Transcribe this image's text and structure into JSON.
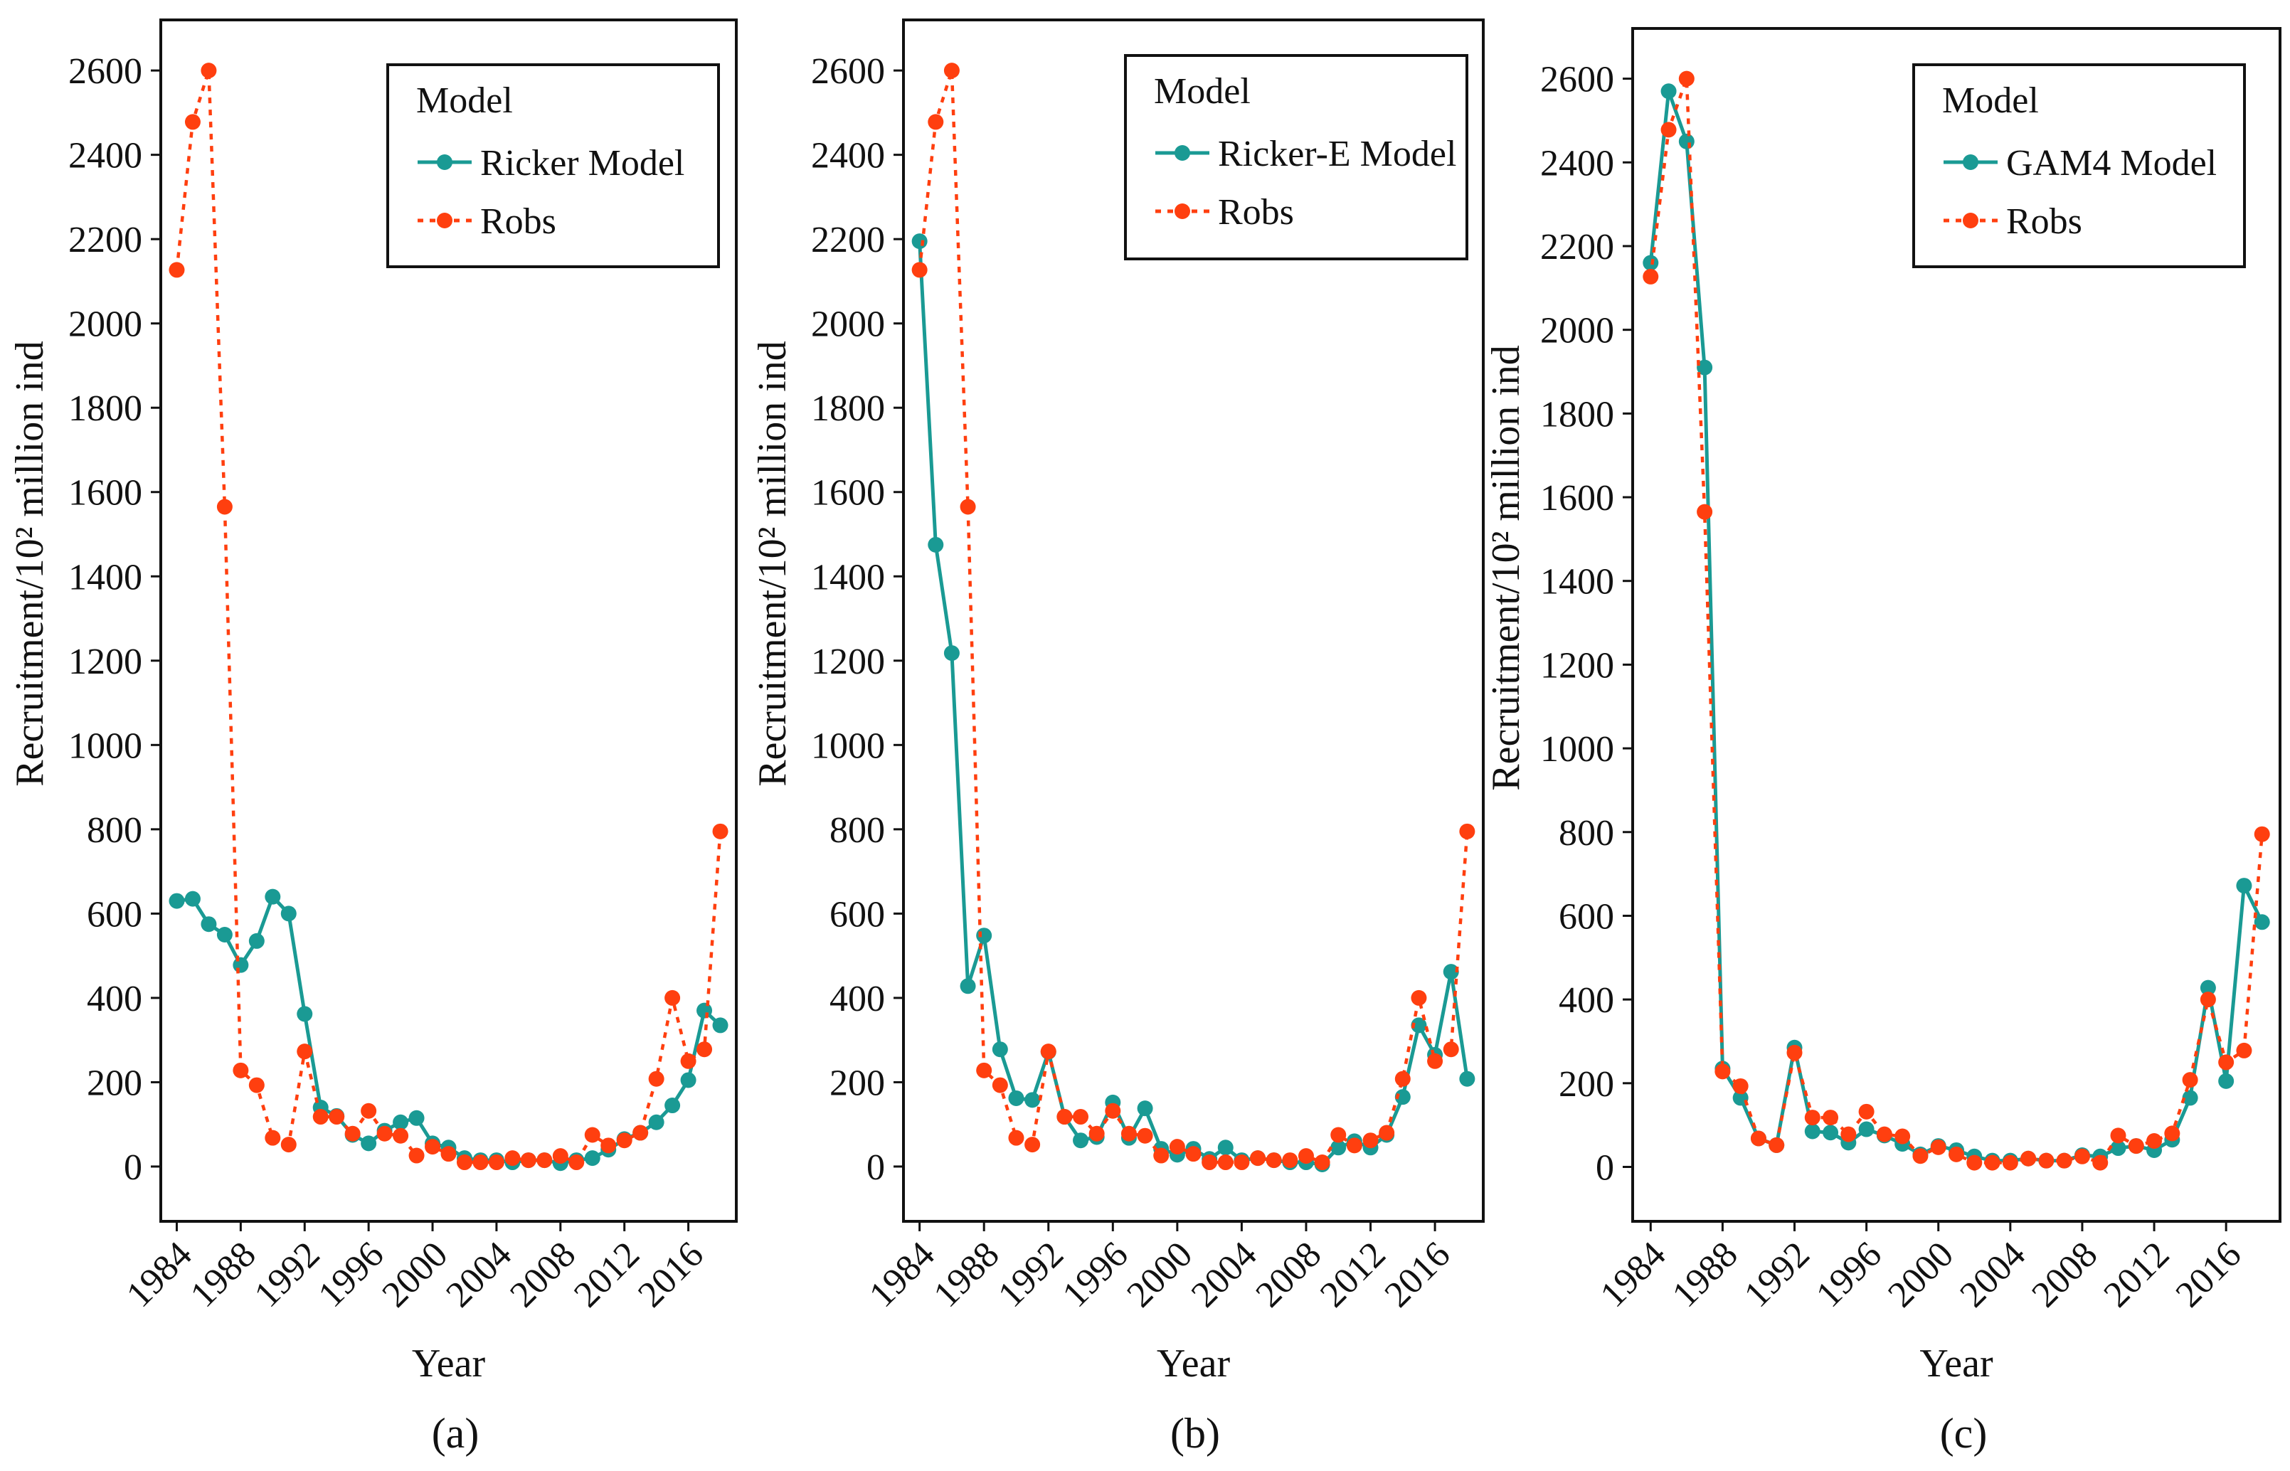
{
  "chart_data": [
    {
      "type": "line",
      "panel_label": "(a)",
      "xlabel": "Year",
      "ylabel": "Recruitment/10² million ind",
      "ylim": [
        -130,
        2720
      ],
      "yticks": [
        0,
        200,
        400,
        600,
        800,
        1000,
        1200,
        1400,
        1600,
        1800,
        2000,
        2200,
        2400,
        2600
      ],
      "xlim": [
        1983,
        2019
      ],
      "xticks": [
        1984,
        1988,
        1992,
        1996,
        2000,
        2004,
        2008,
        2012,
        2016
      ],
      "legend_title": "Model",
      "legend_position": "top-right",
      "years": [
        1984,
        1985,
        1986,
        1987,
        1988,
        1989,
        1990,
        1991,
        1992,
        1993,
        1994,
        1995,
        1996,
        1997,
        1998,
        1999,
        2000,
        2001,
        2002,
        2003,
        2004,
        2005,
        2006,
        2007,
        2008,
        2009,
        2010,
        2011,
        2012,
        2013,
        2014,
        2015,
        2016,
        2017,
        2018
      ],
      "series": [
        {
          "name": "Ricker Model",
          "style": "solid",
          "color": "#1a9a94",
          "values": [
            630,
            635,
            575,
            550,
            478,
            535,
            640,
            600,
            362,
            140,
            120,
            75,
            55,
            85,
            105,
            115,
            55,
            45,
            20,
            15,
            15,
            10,
            15,
            15,
            8,
            15,
            20,
            40,
            65,
            80,
            105,
            145,
            205,
            370,
            335
          ]
        },
        {
          "name": "Robs",
          "style": "dotted",
          "color": "#ff3f0f",
          "values": [
            2127,
            2478,
            2600,
            1565,
            228,
            193,
            68,
            52,
            273,
            118,
            118,
            78,
            132,
            78,
            73,
            26,
            47,
            30,
            10,
            10,
            10,
            20,
            15,
            15,
            25,
            10,
            75,
            50,
            62,
            80,
            208,
            400,
            250,
            278,
            795
          ]
        }
      ]
    },
    {
      "type": "line",
      "panel_label": "(b)",
      "xlabel": "Year",
      "ylabel": "Recruitment/10² million ind",
      "ylim": [
        -130,
        2720
      ],
      "yticks": [
        0,
        200,
        400,
        600,
        800,
        1000,
        1200,
        1400,
        1600,
        1800,
        2000,
        2200,
        2400,
        2600
      ],
      "xlim": [
        1983,
        2019
      ],
      "xticks": [
        1984,
        1988,
        1992,
        1996,
        2000,
        2004,
        2008,
        2012,
        2016
      ],
      "legend_title": "Model",
      "legend_position": "top-right",
      "years": [
        1984,
        1985,
        1986,
        1987,
        1988,
        1989,
        1990,
        1991,
        1992,
        1993,
        1994,
        1995,
        1996,
        1997,
        1998,
        1999,
        2000,
        2001,
        2002,
        2003,
        2004,
        2005,
        2006,
        2007,
        2008,
        2009,
        2010,
        2011,
        2012,
        2013,
        2014,
        2015,
        2016,
        2017,
        2018
      ],
      "series": [
        {
          "name": "Ricker-E Model",
          "style": "solid",
          "color": "#1a9a94",
          "values": [
            2195,
            1475,
            1218,
            428,
            548,
            278,
            162,
            158,
            272,
            118,
            62,
            70,
            152,
            68,
            138,
            42,
            28,
            42,
            18,
            45,
            15,
            20,
            15,
            10,
            10,
            5,
            45,
            60,
            45,
            75,
            165,
            335,
            265,
            462,
            208
          ]
        },
        {
          "name": "Robs",
          "style": "dotted",
          "color": "#ff3f0f",
          "values": [
            2127,
            2478,
            2600,
            1565,
            228,
            193,
            68,
            52,
            273,
            118,
            118,
            78,
            132,
            78,
            73,
            26,
            47,
            30,
            10,
            10,
            10,
            20,
            15,
            15,
            25,
            10,
            75,
            50,
            62,
            80,
            208,
            400,
            250,
            278,
            795
          ]
        }
      ]
    },
    {
      "type": "line",
      "panel_label": "(c)",
      "xlabel": "Year",
      "ylabel": "Recruitment/10² million ind",
      "ylim": [
        -130,
        2720
      ],
      "yticks": [
        0,
        200,
        400,
        600,
        800,
        1000,
        1200,
        1400,
        1600,
        1800,
        2000,
        2200,
        2400,
        2600
      ],
      "xlim": [
        1983,
        2019
      ],
      "xticks": [
        1984,
        1988,
        1992,
        1996,
        2000,
        2004,
        2008,
        2012,
        2016
      ],
      "legend_title": "Model",
      "legend_position": "top-right",
      "years": [
        1984,
        1985,
        1986,
        1987,
        1988,
        1989,
        1990,
        1991,
        1992,
        1993,
        1994,
        1995,
        1996,
        1997,
        1998,
        1999,
        2000,
        2001,
        2002,
        2003,
        2004,
        2005,
        2006,
        2007,
        2008,
        2009,
        2010,
        2011,
        2012,
        2013,
        2014,
        2015,
        2016,
        2017,
        2018
      ],
      "series": [
        {
          "name": "GAM4 Model",
          "style": "solid",
          "color": "#1a9a94",
          "values": [
            2160,
            2570,
            2450,
            1910,
            235,
            165,
            68,
            52,
            285,
            85,
            82,
            58,
            90,
            75,
            55,
            30,
            50,
            40,
            25,
            15,
            15,
            20,
            15,
            15,
            28,
            25,
            45,
            50,
            40,
            65,
            165,
            428,
            205,
            672,
            585
          ]
        },
        {
          "name": "Robs",
          "style": "dotted",
          "color": "#ff3f0f",
          "values": [
            2127,
            2478,
            2600,
            1565,
            228,
            193,
            68,
            52,
            273,
            118,
            118,
            78,
            132,
            78,
            73,
            26,
            47,
            30,
            10,
            10,
            10,
            20,
            15,
            15,
            25,
            10,
            75,
            50,
            62,
            80,
            208,
            400,
            250,
            278,
            795
          ]
        }
      ]
    }
  ]
}
